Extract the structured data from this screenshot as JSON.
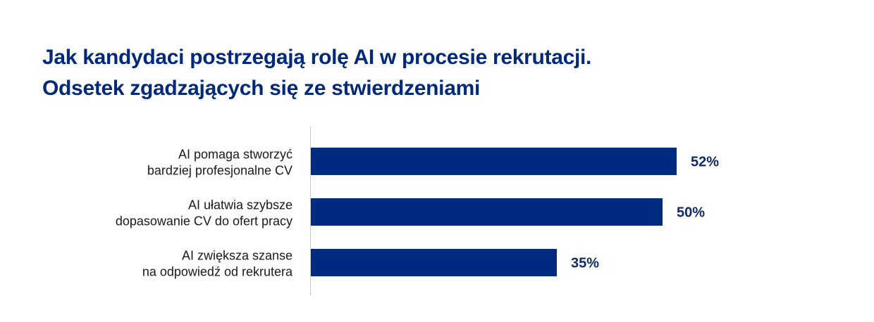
{
  "chart_data": {
    "type": "bar",
    "orientation": "horizontal",
    "title": "Jak kandydaci postrzegają rolę AI w procesie rekrutacji.",
    "subtitle": "Odsetek zgadzających się ze stwierdzeniami",
    "categories": [
      [
        "AI pomaga stworzyć",
        "bardziej profesjonalne CV"
      ],
      [
        "AI ułatwia szybsze",
        "dopasowanie CV do ofert pracy"
      ],
      [
        "AI zwiększa szanse",
        "na odpowiedź od rekrutera"
      ]
    ],
    "values": [
      52,
      50,
      35
    ],
    "value_labels": [
      "52%",
      "50%",
      "35%"
    ],
    "xlim": [
      0,
      100
    ],
    "xlabel": "",
    "ylabel": "",
    "grid": false,
    "bar_color": "#002a7f",
    "title_color": "#00297a"
  }
}
